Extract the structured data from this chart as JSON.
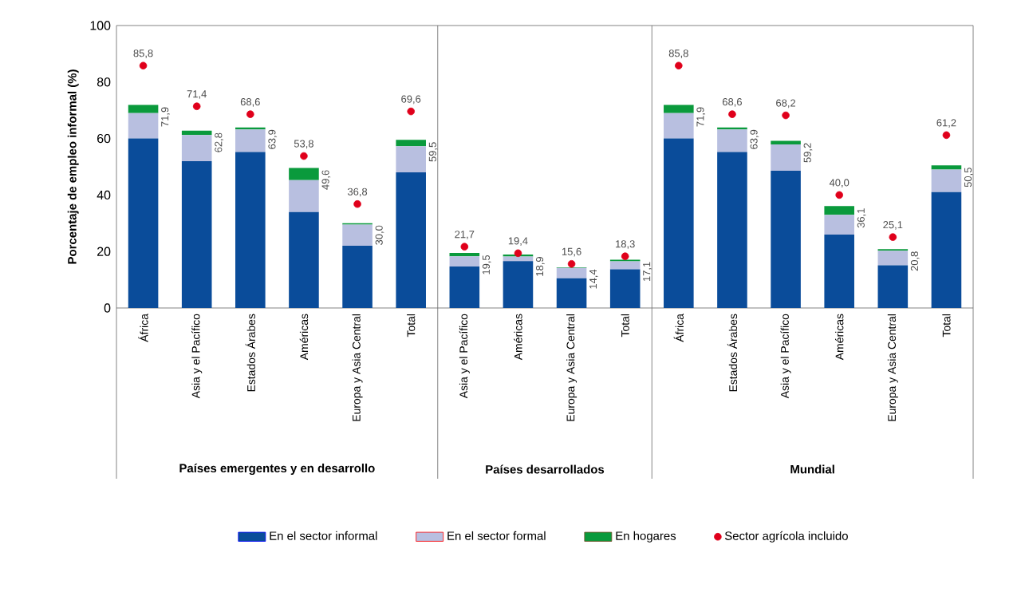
{
  "chart_data": {
    "type": "bar",
    "stacked": true,
    "ylabel": "Porcentaje de empleo informal (%)",
    "categories": [
      "África",
      "Asia y el Pacífico",
      "Estados Árabes",
      "Américas",
      "Europa y Asia Central",
      "Total",
      "Asia y el Pacífico",
      "Américas",
      "Europa y Asia Central",
      "Total",
      "África",
      "Estados Árabes",
      "Asia y el Pacífico",
      "Américas",
      "Europa y Asia Central",
      "Total"
    ],
    "series": [
      {
        "name": "En el sector informal",
        "color": "#0a4c9a",
        "values": [
          60,
          52,
          55.2,
          34,
          22,
          48,
          14.7,
          16.6,
          10.5,
          13.7,
          60,
          55.2,
          48.6,
          26,
          15.1,
          41
        ]
      },
      {
        "name": "En el sector formal",
        "color": "#b8bfe0",
        "values": [
          9,
          9.2,
          8,
          11.3,
          7.5,
          9.3,
          3.6,
          1.6,
          3.7,
          2.8,
          9,
          8,
          9.3,
          7,
          5.2,
          8
        ]
      },
      {
        "name": "En hogares",
        "color": "#0a9a3c",
        "values": [
          2.9,
          1.6,
          0.7,
          4.3,
          0.5,
          2.2,
          1.2,
          0.7,
          0.2,
          0.6,
          2.9,
          0.7,
          1.3,
          3.1,
          0.5,
          1.5
        ]
      },
      {
        "name": "Sector agrícola incluido",
        "type": "scatter",
        "color": "#e0001b",
        "values": [
          85.8,
          71.4,
          68.6,
          53.8,
          36.8,
          69.6,
          21.7,
          19.4,
          15.6,
          18.3,
          85.8,
          68.6,
          68.2,
          40.0,
          25.1,
          61.2
        ],
        "value_labels": [
          "85,8",
          "71,4",
          "68,6",
          "53,8",
          "36,8",
          "69,6",
          "21,7",
          "19,4",
          "15,6",
          "18,3",
          "85,8",
          "68,6",
          "68,2",
          "40,0",
          "25,1",
          "61,2"
        ]
      }
    ],
    "totals": [
      "71,9",
      "62,8",
      "63,9",
      "49,6",
      "30,0",
      "59,5",
      "19,5",
      "18,9",
      "14,4",
      "17,1",
      "71,9",
      "63,9",
      "59,2",
      "36,1",
      "20,8",
      "50,5"
    ],
    "ylim": [
      0,
      100
    ],
    "yticks": [
      0,
      20,
      40,
      60,
      80,
      100
    ],
    "annotations": [
      "Países emergentes y en desarrollo",
      "Países desarrollados",
      "Mundial"
    ],
    "legend": "bottom"
  }
}
